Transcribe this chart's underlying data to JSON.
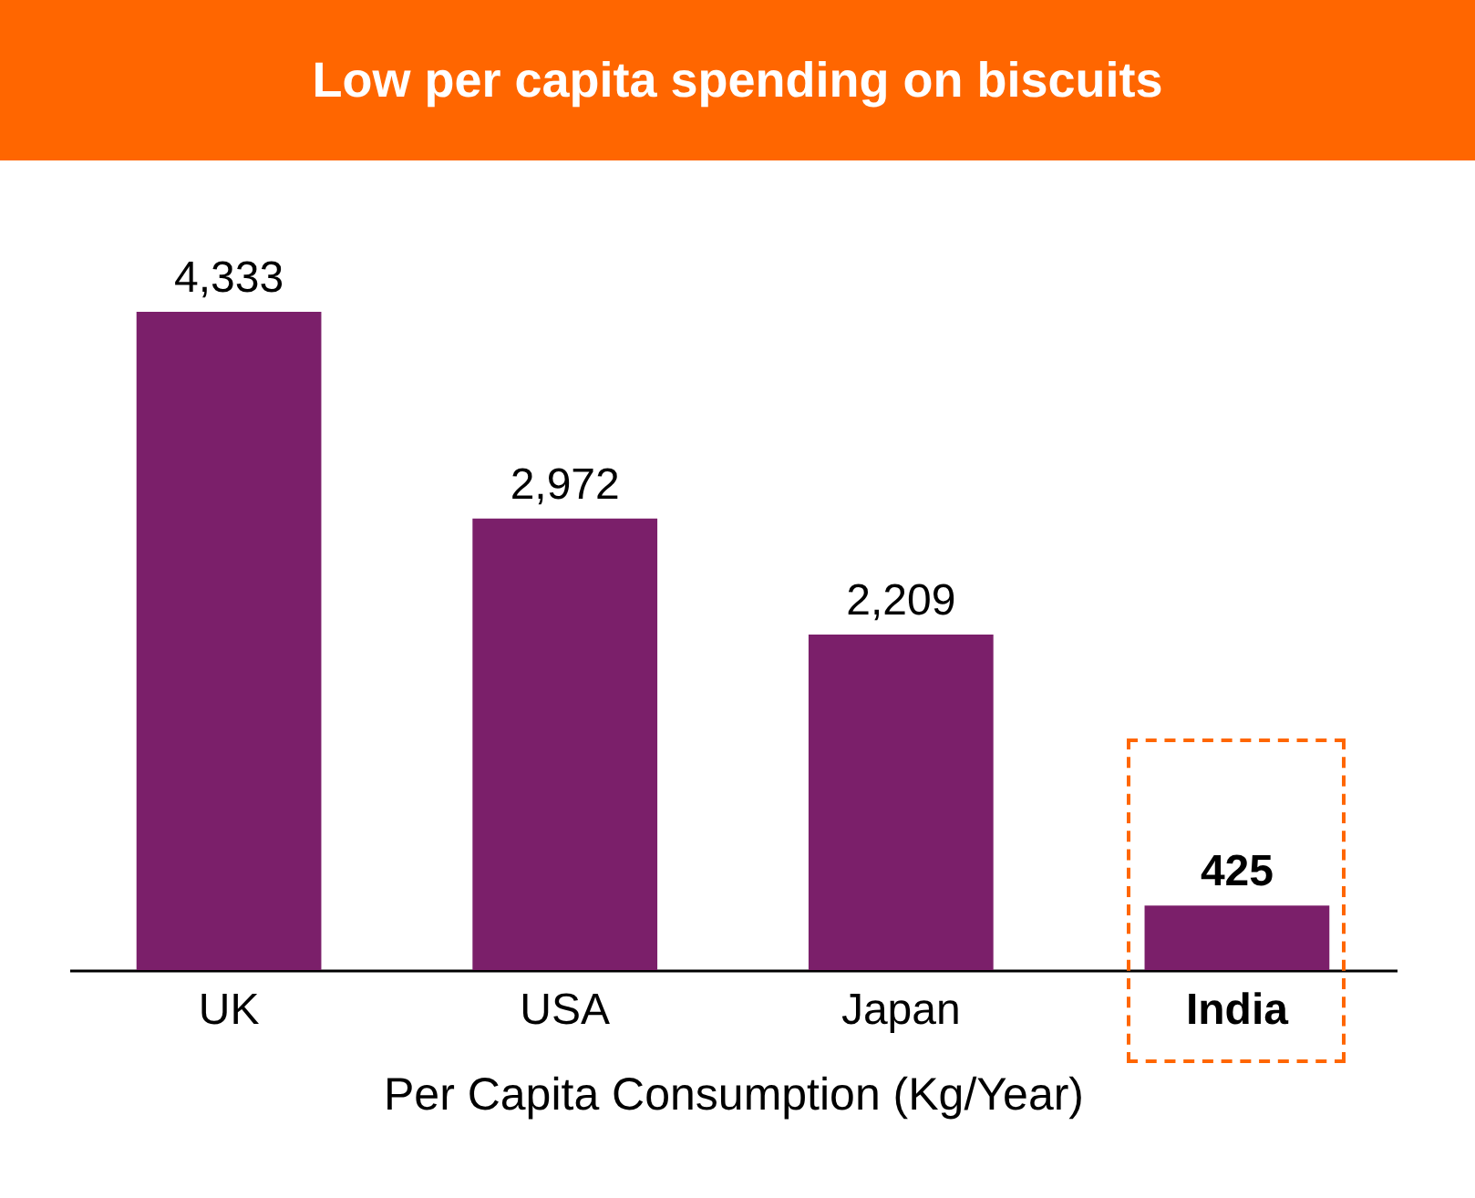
{
  "chart_data": {
    "type": "bar",
    "title": "Low per capita spending on biscuits",
    "xlabel": "Per Capita Consumption (Kg/Year)",
    "categories": [
      "UK",
      "USA",
      "Japan",
      "India"
    ],
    "values": [
      4333,
      2972,
      2209,
      425
    ],
    "value_labels": [
      "4,333",
      "2,972",
      "2,209",
      "425"
    ],
    "color": "#7b1f6a"
  }
}
